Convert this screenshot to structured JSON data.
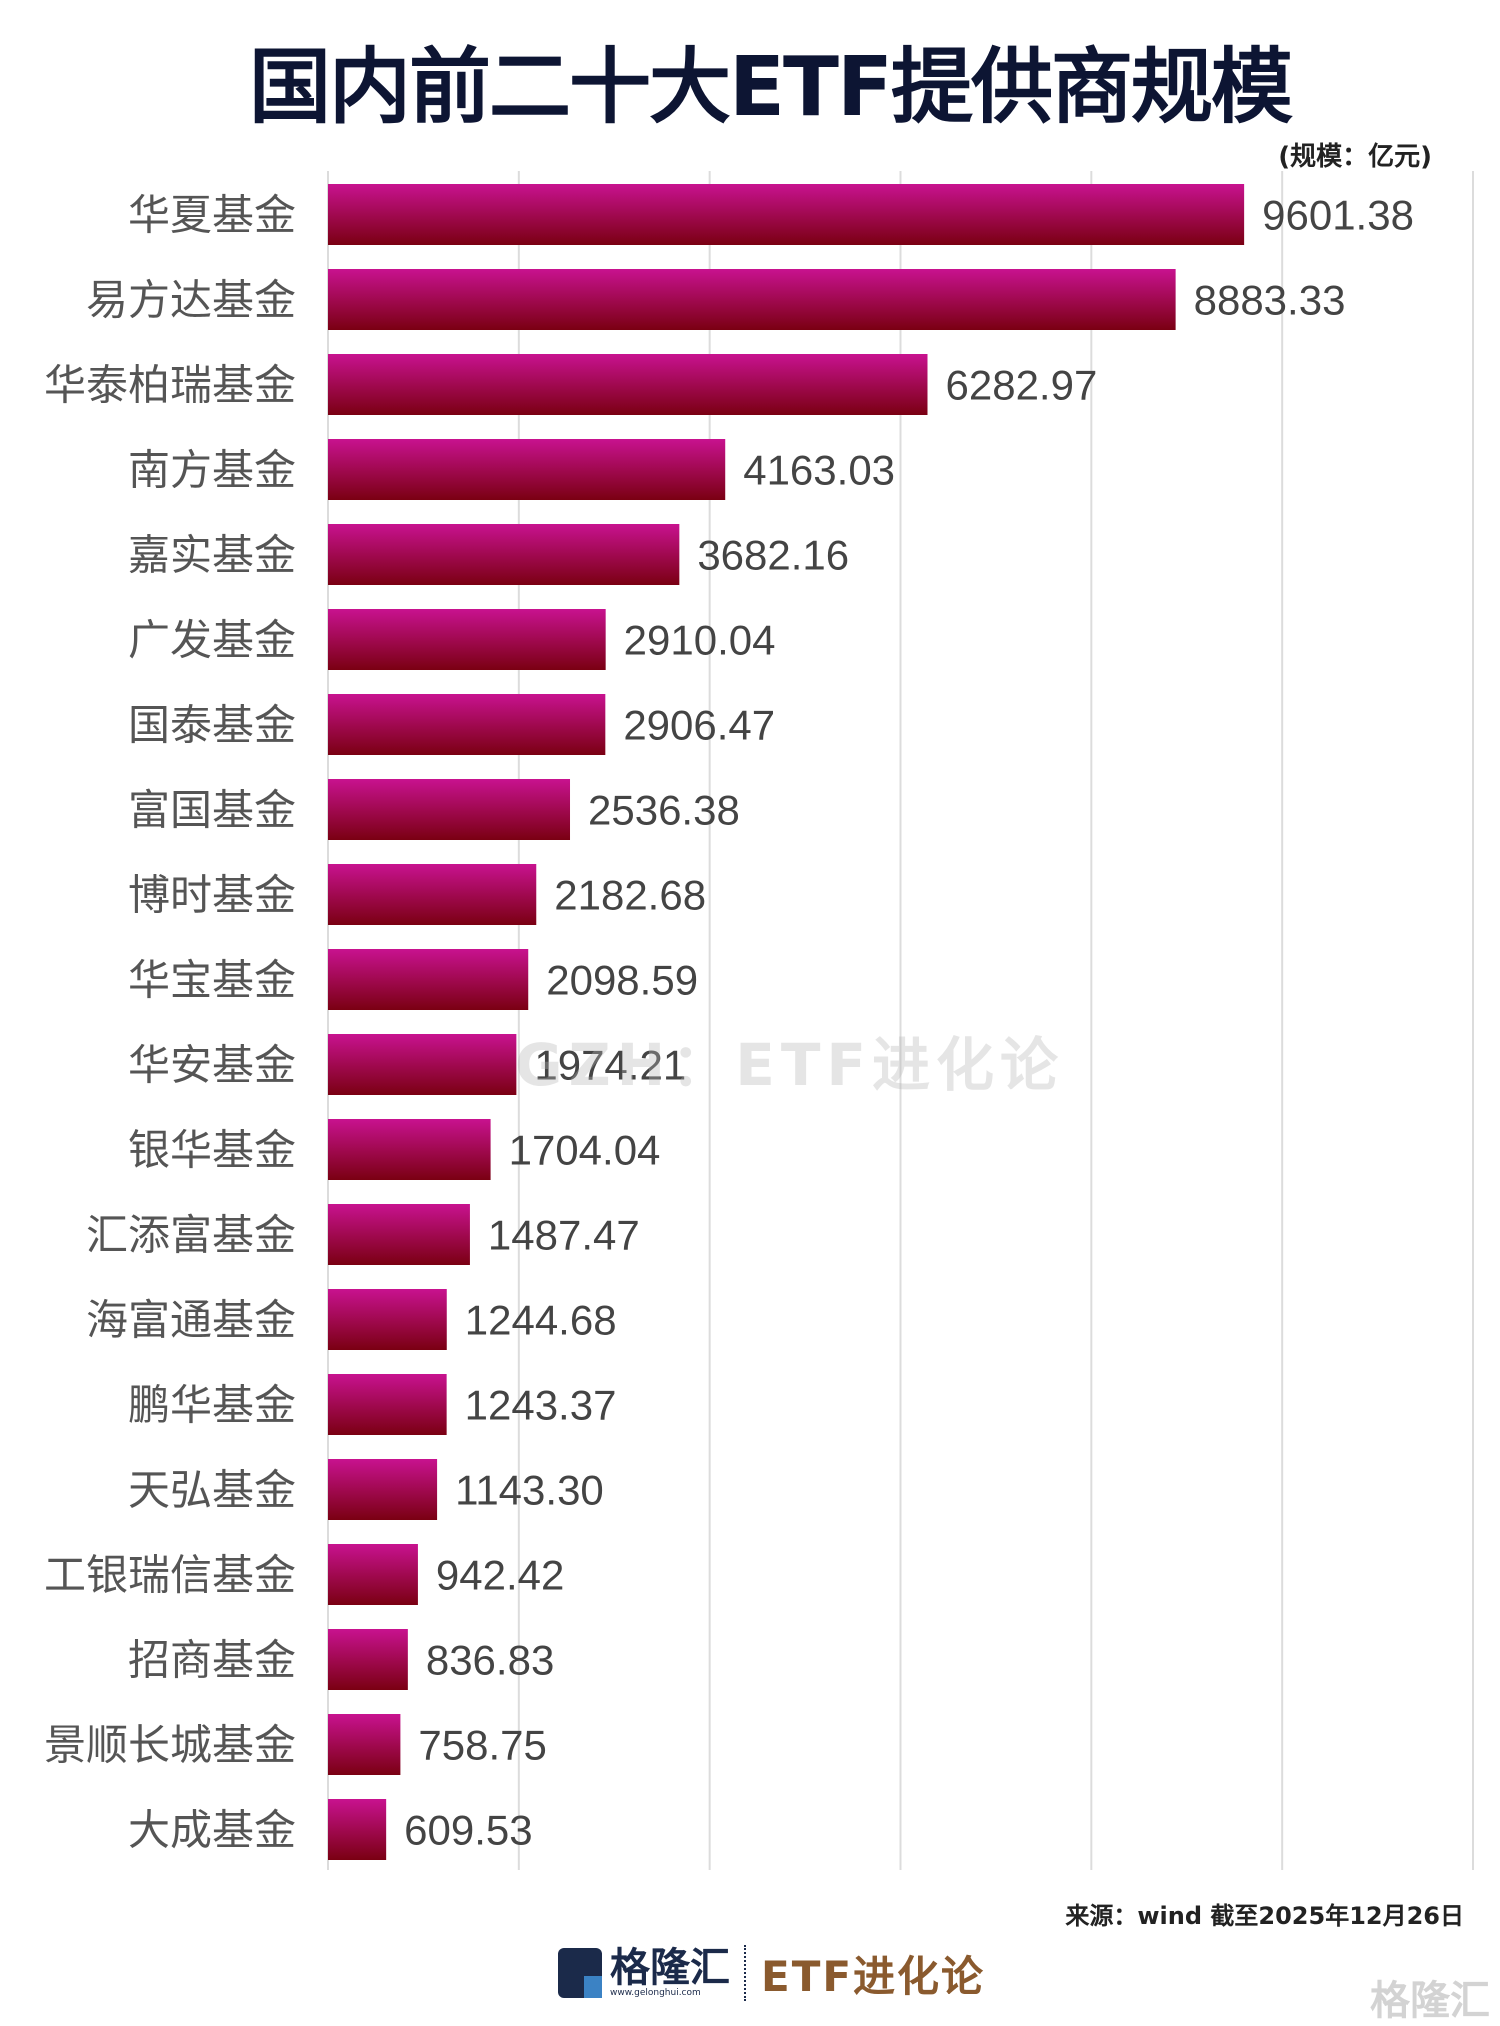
{
  "chart_data": {
    "type": "bar",
    "orientation": "horizontal",
    "title": "国内前二十大ETF提供商规模",
    "unit_label": "(规模：亿元)",
    "categories": [
      "华夏基金",
      "易方达基金",
      "华泰柏瑞基金",
      "南方基金",
      "嘉实基金",
      "广发基金",
      "国泰基金",
      "富国基金",
      "博时基金",
      "华宝基金",
      "华安基金",
      "银华基金",
      "汇添富基金",
      "海富通基金",
      "鹏华基金",
      "天弘基金",
      "工银瑞信基金",
      "招商基金",
      "景顺长城基金",
      "大成基金"
    ],
    "values": [
      9601.38,
      8883.33,
      6282.97,
      4163.03,
      3682.16,
      2910.04,
      2906.47,
      2536.38,
      2182.68,
      2098.59,
      1974.21,
      1704.04,
      1487.47,
      1244.68,
      1243.37,
      1143.3,
      942.42,
      836.83,
      758.75,
      609.53
    ],
    "value_labels": [
      "9601.38",
      "8883.33",
      "6282.97",
      "4163.03",
      "3682.16",
      "2910.04",
      "2906.47",
      "2536.38",
      "2182.68",
      "2098.59",
      "1974.21",
      "1704.04",
      "1487.47",
      "1244.68",
      "1243.37",
      "1143.30",
      "942.42",
      "836.83",
      "758.75",
      "609.53"
    ],
    "xlim": [
      0,
      12000
    ],
    "grid_step": 2000,
    "grid": true,
    "axis_tick_labels_shown": false,
    "bar_gradient": [
      "#c8128f",
      "#7a0012"
    ],
    "label_color": "#555555",
    "title_color": "#0d1533"
  },
  "source": "来源：wind  截至2025年12月26日",
  "footer": {
    "brand": "格隆汇",
    "brand_url": "www.gelonghui.com",
    "column": "ETF进化论"
  },
  "watermark": "GZH：ETF进化论",
  "corner_watermark": "格隆汇"
}
